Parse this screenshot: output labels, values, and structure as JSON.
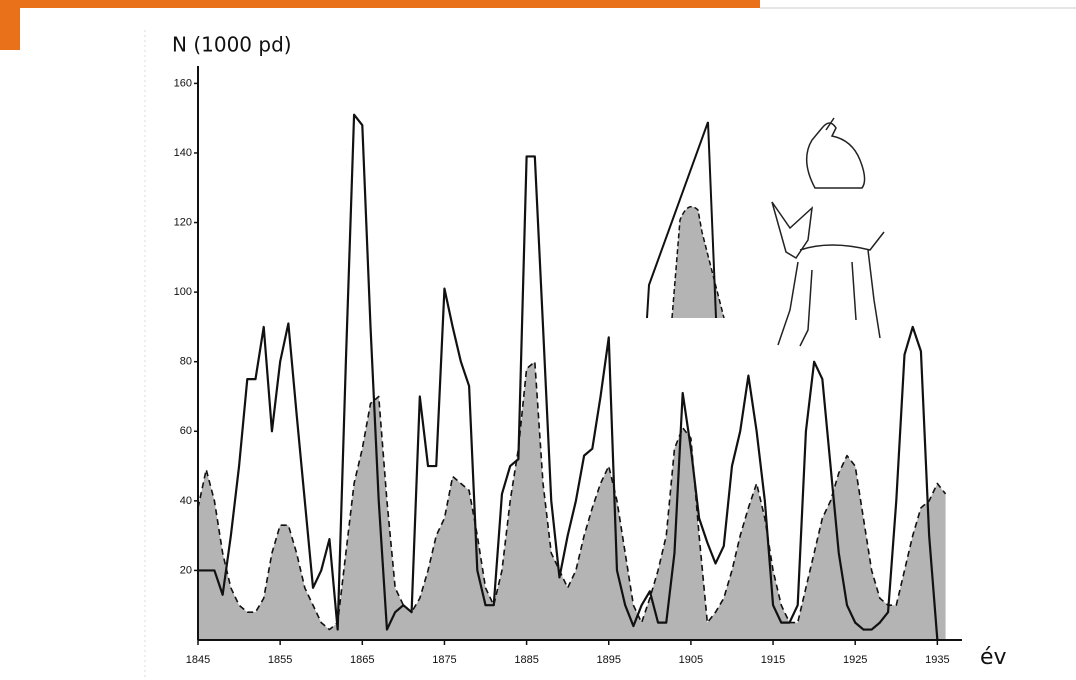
{
  "chart_data": {
    "type": "line",
    "y_label": "N (1000 pd)",
    "x_label": "év",
    "x": [
      1845,
      1846,
      1847,
      1848,
      1849,
      1850,
      1851,
      1852,
      1853,
      1854,
      1855,
      1856,
      1857,
      1858,
      1859,
      1860,
      1861,
      1862,
      1863,
      1864,
      1865,
      1866,
      1867,
      1868,
      1869,
      1870,
      1871,
      1872,
      1873,
      1874,
      1875,
      1876,
      1877,
      1878,
      1879,
      1880,
      1881,
      1882,
      1883,
      1884,
      1885,
      1886,
      1887,
      1888,
      1889,
      1890,
      1891,
      1892,
      1893,
      1894,
      1895,
      1896,
      1897,
      1898,
      1899,
      1900,
      1901,
      1902,
      1903,
      1904,
      1905,
      1906,
      1907,
      1908,
      1909,
      1910,
      1911,
      1912,
      1913,
      1914,
      1915,
      1916,
      1917,
      1918,
      1919,
      1920,
      1921,
      1922,
      1923,
      1924,
      1925,
      1926,
      1927,
      1928,
      1929,
      1930,
      1931,
      1932,
      1933,
      1934,
      1935,
      1936
    ],
    "series": [
      {
        "color": "#111111",
        "style": "solid",
        "values": [
          20,
          20,
          20,
          13,
          30,
          50,
          75,
          75,
          90,
          60,
          80,
          91,
          65,
          40,
          15,
          20,
          29,
          3,
          80,
          151,
          148,
          90,
          40,
          3,
          8,
          10,
          8,
          70,
          50,
          50,
          101,
          90,
          80,
          73,
          20,
          10,
          10,
          42,
          50,
          52,
          139,
          139,
          90,
          40,
          18,
          30,
          40,
          53,
          55,
          70,
          87,
          20,
          10,
          4,
          10,
          14,
          5,
          5,
          25,
          71,
          55,
          35,
          28,
          22,
          27,
          50,
          60,
          76,
          60,
          40,
          10,
          5,
          5,
          10,
          60,
          80,
          75,
          50,
          25,
          10,
          5,
          3,
          3,
          5,
          8,
          40,
          82,
          90,
          83,
          30,
          0,
          null
        ]
      },
      {
        "color": "#111111",
        "style": "dashed",
        "fill": "#b4b4b4",
        "values": [
          38,
          49,
          40,
          25,
          15,
          10,
          8,
          8,
          12,
          25,
          33,
          33,
          25,
          15,
          10,
          5,
          3,
          5,
          25,
          45,
          55,
          68,
          70,
          40,
          15,
          10,
          8,
          12,
          20,
          30,
          35,
          47,
          45,
          43,
          30,
          15,
          10,
          20,
          40,
          55,
          78,
          80,
          45,
          25,
          20,
          15,
          20,
          30,
          38,
          45,
          50,
          40,
          25,
          10,
          5,
          12,
          20,
          30,
          55,
          61,
          58,
          30,
          5,
          8,
          12,
          20,
          30,
          38,
          45,
          35,
          20,
          10,
          5,
          5,
          15,
          25,
          35,
          40,
          48,
          53,
          50,
          35,
          20,
          12,
          10,
          10,
          20,
          30,
          38,
          40,
          45,
          42
        ]
      }
    ],
    "xlim": [
      1845,
      1938
    ],
    "ylim": [
      0,
      165
    ],
    "xticks": [
      1845,
      1855,
      1865,
      1875,
      1885,
      1895,
      1905,
      1915,
      1925,
      1935
    ],
    "yticks": [
      20,
      40,
      60,
      80,
      100,
      120,
      140,
      160
    ]
  }
}
